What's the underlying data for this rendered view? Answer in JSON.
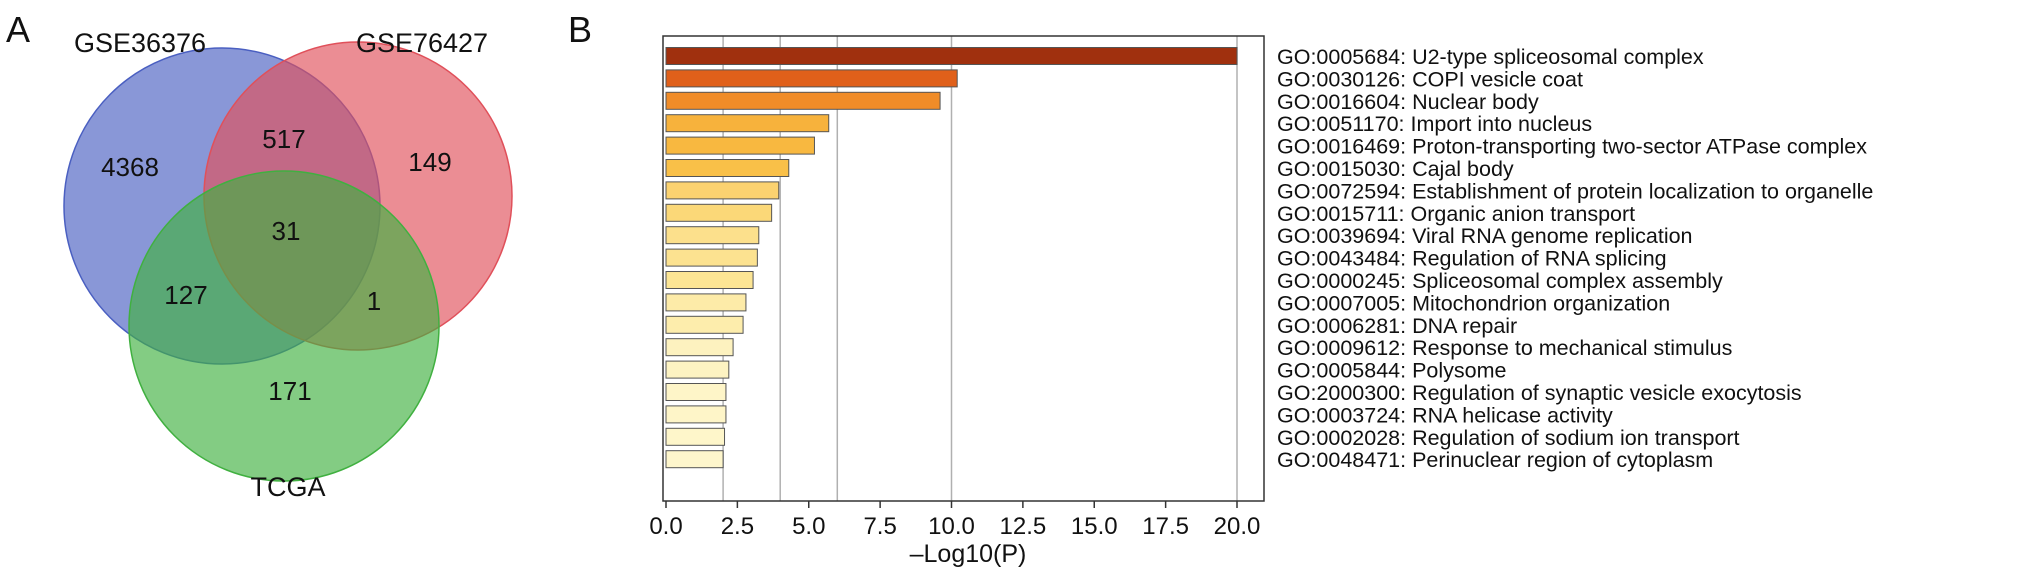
{
  "panels": {
    "a": {
      "letter": "A"
    },
    "b": {
      "letter": "B"
    }
  },
  "venn": {
    "set_labels": [
      "GSE36376",
      "GSE76427",
      "TCGA"
    ],
    "colors": [
      "#4a5fc1",
      "#e0505a",
      "#40b040"
    ],
    "regions": {
      "gse36376_only": "4368",
      "gse36376_gse76427": "517",
      "gse76427_only": "149",
      "all_three": "31",
      "gse36376_tcga": "127",
      "gse76427_tcga": "1",
      "tcga_only": "171"
    }
  },
  "chart_data": {
    "type": "bar",
    "orientation": "horizontal",
    "xlabel": "–Log10(P)",
    "xlim": [
      0,
      20.9
    ],
    "xticks": [
      "0.0",
      "2.5",
      "5.0",
      "7.5",
      "10.0",
      "12.5",
      "15.0",
      "17.5",
      "20.0"
    ],
    "vertical_gridlines_at": [
      2,
      4,
      6,
      10,
      20
    ],
    "categories": [
      "GO:0005684: U2-type spliceosomal complex",
      "GO:0030126: COPI vesicle coat",
      "GO:0016604: Nuclear body",
      "GO:0051170: Import into nucleus",
      "GO:0016469: Proton-transporting two-sector ATPase complex",
      "GO:0015030: Cajal body",
      "GO:0072594: Establishment of protein localization to organelle",
      "GO:0015711: Organic anion transport",
      "GO:0039694: Viral RNA genome replication",
      "GO:0043484: Regulation of RNA splicing",
      "GO:0000245: Spliceosomal complex assembly",
      "GO:0007005: Mitochondrion organization",
      "GO:0006281: DNA repair",
      "GO:0009612: Response to mechanical stimulus",
      "GO:0005844: Polysome",
      "GO:2000300: Regulation of synaptic vesicle exocytosis",
      "GO:0003724: RNA helicase activity",
      "GO:0002028: Regulation of sodium ion transport",
      "GO:0048471: Perinuclear region of cytoplasm"
    ],
    "values": [
      20.0,
      10.2,
      9.6,
      5.7,
      5.2,
      4.3,
      3.95,
      3.7,
      3.25,
      3.2,
      3.05,
      2.8,
      2.7,
      2.35,
      2.2,
      2.1,
      2.1,
      2.05,
      2.0
    ],
    "bar_colors": [
      "#a0300e",
      "#e0601a",
      "#f08c28",
      "#f7b23c",
      "#f8b840",
      "#f9c048",
      "#fbd270",
      "#fbd878",
      "#fce08c",
      "#fce290",
      "#fce594",
      "#fdeba8",
      "#fdedac",
      "#fdf2bf",
      "#fdf3c2",
      "#fef5c8",
      "#fef5c8",
      "#fef6ca",
      "#fef6cc"
    ]
  }
}
